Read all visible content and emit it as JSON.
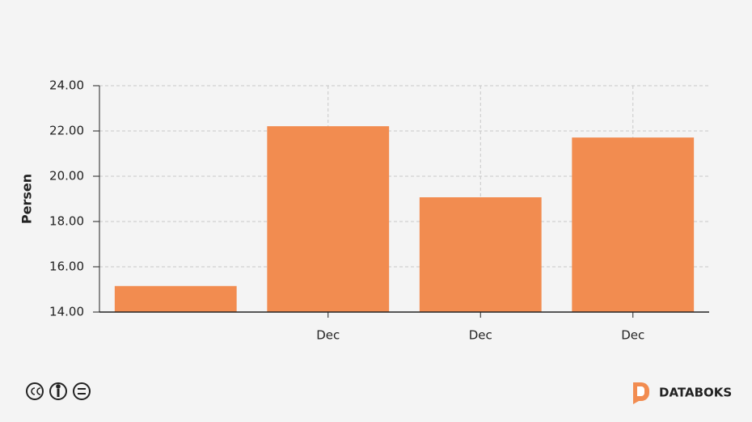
{
  "chart_data": {
    "type": "bar",
    "y_label": "Persen",
    "categories": [
      null,
      "Dec",
      "Dec",
      "Dec"
    ],
    "values": [
      15.15,
      22.21,
      19.07,
      21.71
    ],
    "color": "#f28c50",
    "ylim": [
      14,
      24
    ],
    "yticks": [
      {
        "value": 14,
        "label": "14.00"
      },
      {
        "value": 16,
        "label": "16.00"
      },
      {
        "value": 18,
        "label": "18.00"
      },
      {
        "value": 20,
        "label": "20.00"
      },
      {
        "value": 22,
        "label": "22.00"
      },
      {
        "value": 24,
        "label": "24.00"
      }
    ],
    "grid": true
  },
  "brand": "DATABOKS"
}
